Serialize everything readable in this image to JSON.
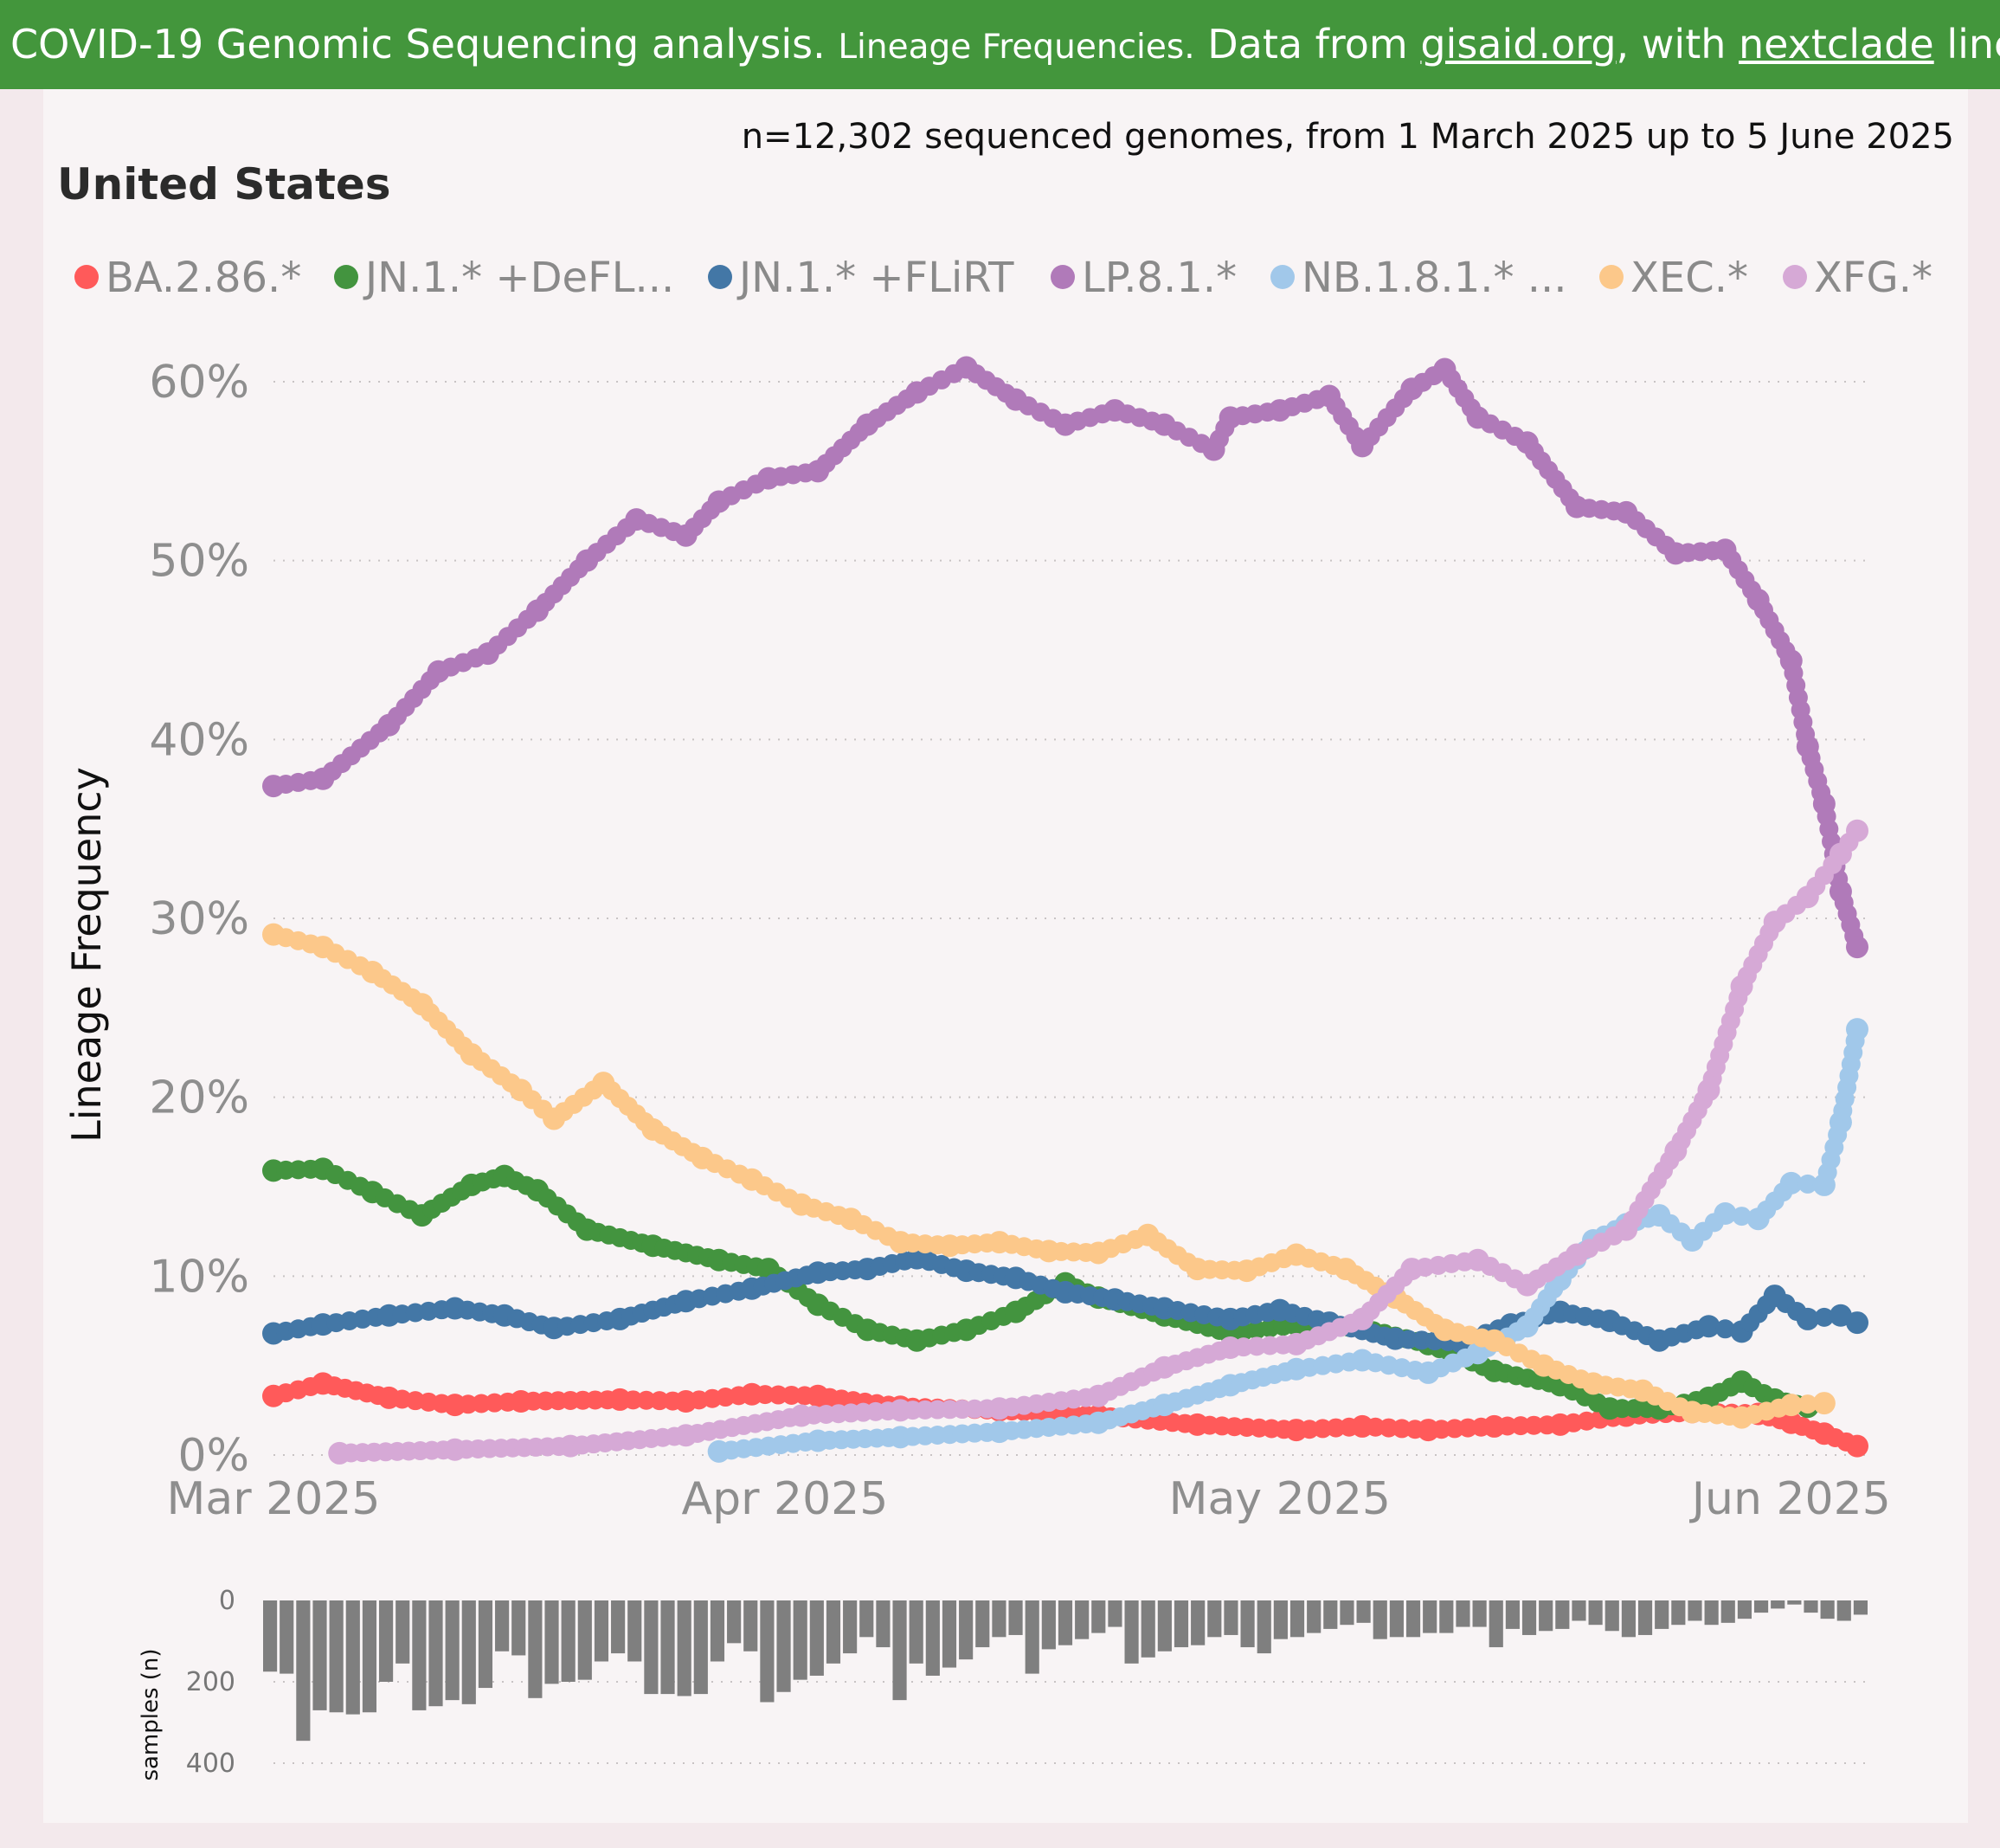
{
  "banner": {
    "part1": "COVID-19 Genomic Sequencing analysis.",
    "part2": "Lineage Frequencies.",
    "part3": "Data from",
    "link1": "gisaid.org",
    "part4": ", with",
    "link2": "nextclade",
    "part5": "lineages. Source"
  },
  "subtitle": "n=12,302 sequenced genomes, from 1 March 2025 up to 5 June 2025",
  "region": "United States",
  "colors": {
    "banner_bg": "#43963c",
    "grid": "#c8c3c4",
    "bar": "#7f7f7f"
  },
  "chart_data": [
    {
      "type": "scatter",
      "title": "United States",
      "ylabel": "Lineage Frequency",
      "xlabel": "",
      "x_ticks": [
        "Mar 2025",
        "Apr 2025",
        "May 2025",
        "Jun 2025"
      ],
      "y_ticks": [
        "0%",
        "10%",
        "20%",
        "30%",
        "40%",
        "50%",
        "60%"
      ],
      "x_range": [
        "2025-03-01",
        "2025-06-05"
      ],
      "ylim": [
        0,
        60
      ],
      "grid": "horizontal dotted",
      "legend_position": "top",
      "series": [
        {
          "name": "BA.2.86.*",
          "color": "#ff5a5a",
          "points": [
            [
              "2025-03-01",
              3.3
            ],
            [
              "2025-03-04",
              4.0
            ],
            [
              "2025-03-08",
              3.2
            ],
            [
              "2025-03-12",
              2.8
            ],
            [
              "2025-03-16",
              3.0
            ],
            [
              "2025-03-22",
              3.1
            ],
            [
              "2025-03-26",
              3.0
            ],
            [
              "2025-03-30",
              3.4
            ],
            [
              "2025-04-03",
              3.3
            ],
            [
              "2025-04-08",
              2.7
            ],
            [
              "2025-04-14",
              2.5
            ],
            [
              "2025-04-20",
              2.2
            ],
            [
              "2025-04-26",
              1.7
            ],
            [
              "2025-05-02",
              1.4
            ],
            [
              "2025-05-06",
              1.6
            ],
            [
              "2025-05-10",
              1.4
            ],
            [
              "2025-05-14",
              1.6
            ],
            [
              "2025-05-18",
              1.7
            ],
            [
              "2025-05-22",
              2.2
            ],
            [
              "2025-05-26",
              2.4
            ],
            [
              "2025-05-30",
              2.3
            ],
            [
              "2025-06-01",
              1.8
            ],
            [
              "2025-06-03",
              1.2
            ],
            [
              "2025-06-05",
              0.5
            ]
          ]
        },
        {
          "name": "JN.1.* +DeFL...",
          "color": "#43943f",
          "points": [
            [
              "2025-03-01",
              15.9
            ],
            [
              "2025-03-04",
              16.0
            ],
            [
              "2025-03-07",
              14.7
            ],
            [
              "2025-03-10",
              13.4
            ],
            [
              "2025-03-13",
              15.1
            ],
            [
              "2025-03-15",
              15.6
            ],
            [
              "2025-03-17",
              14.8
            ],
            [
              "2025-03-20",
              12.6
            ],
            [
              "2025-03-24",
              11.7
            ],
            [
              "2025-03-28",
              10.9
            ],
            [
              "2025-03-31",
              10.4
            ],
            [
              "2025-04-03",
              8.4
            ],
            [
              "2025-04-06",
              7.0
            ],
            [
              "2025-04-09",
              6.4
            ],
            [
              "2025-04-12",
              7.0
            ],
            [
              "2025-04-15",
              8.0
            ],
            [
              "2025-04-18",
              9.6
            ],
            [
              "2025-04-20",
              8.8
            ],
            [
              "2025-04-24",
              7.8
            ],
            [
              "2025-04-28",
              6.8
            ],
            [
              "2025-05-02",
              7.3
            ],
            [
              "2025-05-06",
              7.1
            ],
            [
              "2025-05-10",
              6.2
            ],
            [
              "2025-05-14",
              4.7
            ],
            [
              "2025-05-18",
              3.9
            ],
            [
              "2025-05-21",
              2.6
            ],
            [
              "2025-05-24",
              2.6
            ],
            [
              "2025-05-27",
              3.2
            ],
            [
              "2025-05-29",
              4.1
            ],
            [
              "2025-05-31",
              3.1
            ],
            [
              "2025-06-02",
              2.7
            ]
          ]
        },
        {
          "name": "JN.1.* +FLiRT",
          "color": "#4377a6",
          "points": [
            [
              "2025-03-01",
              6.8
            ],
            [
              "2025-03-04",
              7.3
            ],
            [
              "2025-03-08",
              7.8
            ],
            [
              "2025-03-12",
              8.2
            ],
            [
              "2025-03-15",
              7.8
            ],
            [
              "2025-03-18",
              7.1
            ],
            [
              "2025-03-22",
              7.6
            ],
            [
              "2025-03-26",
              8.6
            ],
            [
              "2025-03-30",
              9.3
            ],
            [
              "2025-04-03",
              10.2
            ],
            [
              "2025-04-06",
              10.4
            ],
            [
              "2025-04-09",
              11.0
            ],
            [
              "2025-04-12",
              10.3
            ],
            [
              "2025-04-15",
              9.9
            ],
            [
              "2025-04-18",
              9.1
            ],
            [
              "2025-04-21",
              8.7
            ],
            [
              "2025-04-24",
              8.2
            ],
            [
              "2025-04-28",
              7.6
            ],
            [
              "2025-05-01",
              8.1
            ],
            [
              "2025-05-04",
              7.4
            ],
            [
              "2025-05-08",
              6.5
            ],
            [
              "2025-05-12",
              6.3
            ],
            [
              "2025-05-15",
              7.3
            ],
            [
              "2025-05-18",
              8.0
            ],
            [
              "2025-05-21",
              7.5
            ],
            [
              "2025-05-24",
              6.4
            ],
            [
              "2025-05-27",
              7.2
            ],
            [
              "2025-05-29",
              6.9
            ],
            [
              "2025-05-31",
              8.9
            ],
            [
              "2025-06-02",
              7.6
            ],
            [
              "2025-06-04",
              7.8
            ],
            [
              "2025-06-05",
              7.4
            ]
          ]
        },
        {
          "name": "LP.8.1.*",
          "color": "#b07ab9",
          "points": [
            [
              "2025-03-01",
              37.4
            ],
            [
              "2025-03-04",
              37.8
            ],
            [
              "2025-03-08",
              40.8
            ],
            [
              "2025-03-11",
              43.8
            ],
            [
              "2025-03-14",
              44.8
            ],
            [
              "2025-03-17",
              47.2
            ],
            [
              "2025-03-20",
              50.0
            ],
            [
              "2025-03-23",
              52.3
            ],
            [
              "2025-03-26",
              51.4
            ],
            [
              "2025-03-28",
              53.3
            ],
            [
              "2025-03-31",
              54.6
            ],
            [
              "2025-04-03",
              55.0
            ],
            [
              "2025-04-06",
              57.6
            ],
            [
              "2025-04-09",
              59.4
            ],
            [
              "2025-04-12",
              60.8
            ],
            [
              "2025-04-15",
              59.0
            ],
            [
              "2025-04-18",
              57.6
            ],
            [
              "2025-04-21",
              58.4
            ],
            [
              "2025-04-24",
              57.6
            ],
            [
              "2025-04-27",
              56.2
            ],
            [
              "2025-04-28",
              58.0
            ],
            [
              "2025-05-01",
              58.4
            ],
            [
              "2025-05-04",
              59.2
            ],
            [
              "2025-05-06",
              56.4
            ],
            [
              "2025-05-09",
              59.6
            ],
            [
              "2025-05-11",
              60.7
            ],
            [
              "2025-05-13",
              58.0
            ],
            [
              "2025-05-16",
              56.6
            ],
            [
              "2025-05-19",
              53.0
            ],
            [
              "2025-05-22",
              52.7
            ],
            [
              "2025-05-25",
              50.4
            ],
            [
              "2025-05-28",
              50.6
            ],
            [
              "2025-05-30",
              47.8
            ],
            [
              "2025-06-01",
              44.4
            ],
            [
              "2025-06-02",
              39.6
            ],
            [
              "2025-06-03",
              36.4
            ],
            [
              "2025-06-04",
              31.5
            ],
            [
              "2025-06-05",
              28.4
            ]
          ]
        },
        {
          "name": "NB.1.8.1.* ...",
          "color": "#a1c8ea",
          "points": [
            [
              "2025-03-28",
              0.2
            ],
            [
              "2025-04-03",
              0.8
            ],
            [
              "2025-04-08",
              1.0
            ],
            [
              "2025-04-14",
              1.3
            ],
            [
              "2025-04-20",
              1.8
            ],
            [
              "2025-04-24",
              2.8
            ],
            [
              "2025-04-28",
              3.9
            ],
            [
              "2025-05-02",
              4.8
            ],
            [
              "2025-05-06",
              5.3
            ],
            [
              "2025-05-10",
              4.6
            ],
            [
              "2025-05-13",
              5.7
            ],
            [
              "2025-05-16",
              7.2
            ],
            [
              "2025-05-18",
              9.8
            ],
            [
              "2025-05-20",
              12.0
            ],
            [
              "2025-05-22",
              12.9
            ],
            [
              "2025-05-24",
              13.4
            ],
            [
              "2025-05-26",
              12.0
            ],
            [
              "2025-05-28",
              13.5
            ],
            [
              "2025-05-30",
              13.2
            ],
            [
              "2025-06-01",
              15.2
            ],
            [
              "2025-06-03",
              15.1
            ],
            [
              "2025-06-04",
              18.6
            ],
            [
              "2025-06-05",
              23.8
            ]
          ]
        },
        {
          "name": "XEC.*",
          "color": "#fcc88a",
          "points": [
            [
              "2025-03-01",
              29.1
            ],
            [
              "2025-03-04",
              28.4
            ],
            [
              "2025-03-07",
              27.0
            ],
            [
              "2025-03-10",
              25.2
            ],
            [
              "2025-03-13",
              22.4
            ],
            [
              "2025-03-16",
              20.4
            ],
            [
              "2025-03-18",
              18.8
            ],
            [
              "2025-03-21",
              20.8
            ],
            [
              "2025-03-24",
              18.2
            ],
            [
              "2025-03-27",
              16.6
            ],
            [
              "2025-03-30",
              15.4
            ],
            [
              "2025-04-02",
              14.0
            ],
            [
              "2025-04-05",
              13.2
            ],
            [
              "2025-04-08",
              11.9
            ],
            [
              "2025-04-11",
              11.7
            ],
            [
              "2025-04-14",
              11.9
            ],
            [
              "2025-04-17",
              11.4
            ],
            [
              "2025-04-20",
              11.3
            ],
            [
              "2025-04-23",
              12.3
            ],
            [
              "2025-04-26",
              10.4
            ],
            [
              "2025-04-29",
              10.3
            ],
            [
              "2025-05-02",
              11.2
            ],
            [
              "2025-05-05",
              10.4
            ],
            [
              "2025-05-08",
              8.8
            ],
            [
              "2025-05-11",
              7.0
            ],
            [
              "2025-05-14",
              6.4
            ],
            [
              "2025-05-17",
              5.0
            ],
            [
              "2025-05-20",
              4.0
            ],
            [
              "2025-05-23",
              3.6
            ],
            [
              "2025-05-26",
              2.4
            ],
            [
              "2025-05-29",
              2.1
            ],
            [
              "2025-06-01",
              2.8
            ],
            [
              "2025-06-03",
              2.9
            ]
          ]
        },
        {
          "name": "XFG.*",
          "color": "#d6a9d6",
          "points": [
            [
              "2025-03-05",
              0.1
            ],
            [
              "2025-03-12",
              0.3
            ],
            [
              "2025-03-19",
              0.5
            ],
            [
              "2025-03-26",
              1.1
            ],
            [
              "2025-04-02",
              2.2
            ],
            [
              "2025-04-08",
              2.5
            ],
            [
              "2025-04-14",
              2.6
            ],
            [
              "2025-04-20",
              3.3
            ],
            [
              "2025-04-24",
              4.9
            ],
            [
              "2025-04-28",
              6.0
            ],
            [
              "2025-05-02",
              6.2
            ],
            [
              "2025-05-06",
              7.6
            ],
            [
              "2025-05-09",
              10.4
            ],
            [
              "2025-05-13",
              10.9
            ],
            [
              "2025-05-16",
              9.5
            ],
            [
              "2025-05-19",
              11.2
            ],
            [
              "2025-05-22",
              12.6
            ],
            [
              "2025-05-25",
              17.0
            ],
            [
              "2025-05-27",
              20.4
            ],
            [
              "2025-05-29",
              26.2
            ],
            [
              "2025-05-31",
              29.8
            ],
            [
              "2025-06-02",
              31.2
            ],
            [
              "2025-06-04",
              33.6
            ],
            [
              "2025-06-05",
              34.9
            ]
          ]
        }
      ]
    },
    {
      "type": "bar",
      "ylabel": "samples (n)",
      "y_ticks": [
        "0",
        "200",
        "400"
      ],
      "ylim": [
        0,
        400
      ],
      "orientation": "downward",
      "values": [
        175,
        180,
        345,
        270,
        275,
        280,
        275,
        200,
        155,
        270,
        260,
        245,
        255,
        215,
        125,
        135,
        240,
        205,
        200,
        195,
        150,
        130,
        150,
        230,
        230,
        235,
        230,
        150,
        105,
        125,
        250,
        225,
        195,
        185,
        155,
        130,
        90,
        115,
        245,
        155,
        185,
        165,
        145,
        115,
        90,
        85,
        180,
        120,
        110,
        95,
        80,
        65,
        155,
        140,
        125,
        115,
        110,
        90,
        85,
        115,
        130,
        95,
        90,
        80,
        70,
        60,
        55,
        95,
        90,
        90,
        80,
        80,
        65,
        65,
        115,
        70,
        85,
        75,
        70,
        50,
        60,
        75,
        90,
        85,
        70,
        60,
        50,
        60,
        55,
        45,
        30,
        20,
        10,
        30,
        45,
        50,
        35
      ]
    }
  ]
}
